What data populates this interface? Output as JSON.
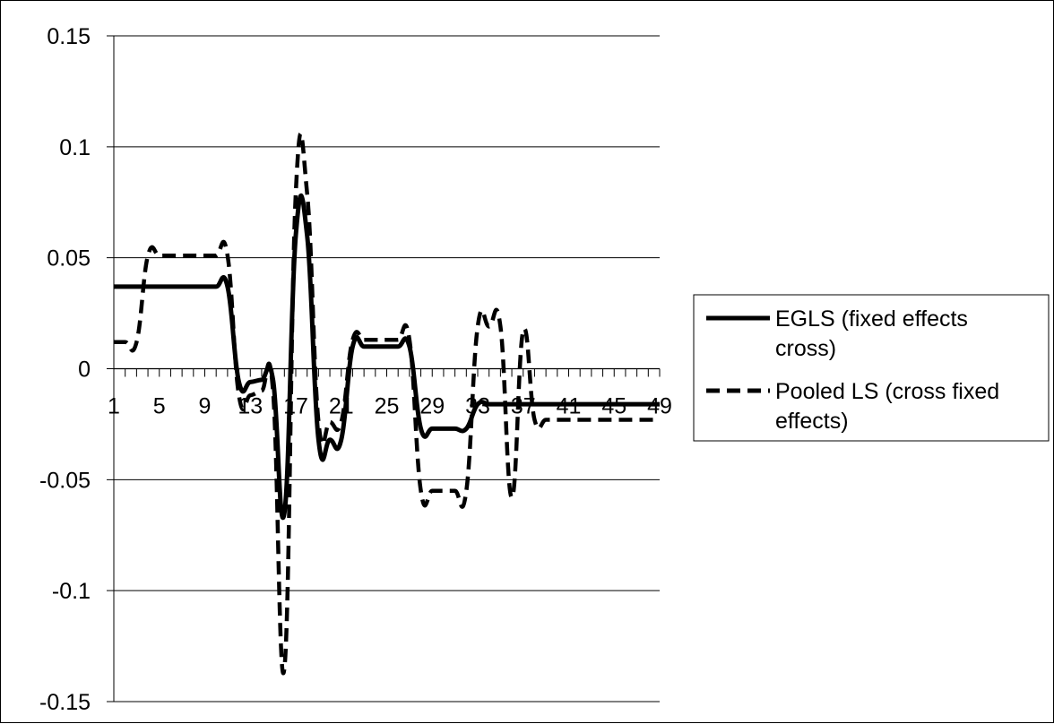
{
  "chart_data": {
    "type": "line",
    "title": "",
    "xlabel": "",
    "ylabel": "",
    "ylim": [
      -0.15,
      0.15
    ],
    "yticks": [
      0.15,
      0.1,
      0.05,
      0,
      -0.05,
      -0.1,
      -0.15
    ],
    "ytick_labels": [
      "0.15",
      "0.1",
      "0.05",
      "0",
      "-0.05",
      "-0.1",
      "-0.15"
    ],
    "xtick_labels": [
      "1",
      "5",
      "9",
      "13",
      "17",
      "21",
      "25",
      "29",
      "33",
      "37",
      "41",
      "45",
      "49"
    ],
    "xtick_values": [
      1,
      5,
      9,
      13,
      17,
      21,
      25,
      29,
      33,
      37,
      41,
      45,
      49
    ],
    "xlim": [
      1,
      49
    ],
    "grid": true,
    "legend_position": "right",
    "series": [
      {
        "name": "EGLS (fixed effects cross)",
        "style": "solid",
        "color": "#000000",
        "x": [
          1,
          2,
          3,
          4,
          5,
          6,
          7,
          8,
          9,
          10,
          11,
          12,
          13,
          14,
          15,
          16,
          17,
          18,
          19,
          20,
          21,
          22,
          23,
          24,
          25,
          26,
          27,
          28,
          29,
          30,
          31,
          32,
          33,
          34,
          35,
          36,
          37,
          38,
          39,
          40,
          41,
          42,
          43,
          44,
          45,
          46,
          47,
          48,
          49
        ],
        "values": [
          0.037,
          0.037,
          0.037,
          0.037,
          0.037,
          0.037,
          0.037,
          0.037,
          0.037,
          0.037,
          0.037,
          -0.006,
          -0.006,
          -0.005,
          -0.005,
          -0.065,
          0.06,
          0.06,
          -0.032,
          -0.032,
          -0.032,
          0.01,
          0.01,
          0.01,
          0.01,
          0.01,
          0.01,
          -0.027,
          -0.027,
          -0.027,
          -0.027,
          -0.027,
          -0.016,
          -0.016,
          -0.016,
          -0.016,
          -0.016,
          -0.016,
          -0.016,
          -0.016,
          -0.016,
          -0.016,
          -0.016,
          -0.016,
          -0.016,
          -0.016,
          -0.016,
          -0.016,
          -0.016
        ]
      },
      {
        "name": "Pooled LS (cross fixed effects)",
        "style": "dashed",
        "color": "#000000",
        "x": [
          1,
          2,
          3,
          4,
          5,
          6,
          7,
          8,
          9,
          10,
          11,
          12,
          13,
          14,
          15,
          16,
          17,
          18,
          19,
          20,
          21,
          22,
          23,
          24,
          25,
          26,
          27,
          28,
          29,
          30,
          31,
          32,
          33,
          34,
          35,
          36,
          37,
          38,
          39,
          40,
          41,
          42,
          43,
          44,
          45,
          46,
          47,
          48,
          49
        ],
        "values": [
          0.012,
          0.012,
          0.012,
          0.051,
          0.051,
          0.051,
          0.051,
          0.051,
          0.051,
          0.051,
          0.051,
          -0.012,
          -0.012,
          -0.01,
          -0.01,
          -0.135,
          0.079,
          0.079,
          -0.024,
          -0.024,
          -0.024,
          0.013,
          0.013,
          0.013,
          0.013,
          0.013,
          0.013,
          -0.055,
          -0.055,
          -0.055,
          -0.055,
          -0.055,
          0.019,
          0.019,
          0.019,
          -0.058,
          0.017,
          -0.023,
          -0.023,
          -0.023,
          -0.023,
          -0.023,
          -0.023,
          -0.023,
          -0.023,
          -0.023,
          -0.023,
          -0.023,
          -0.023
        ]
      }
    ],
    "legend": [
      {
        "line1": "EGLS (fixed effects",
        "line2": "cross)"
      },
      {
        "line1": "Pooled LS (cross fixed",
        "line2": "effects)"
      }
    ]
  }
}
